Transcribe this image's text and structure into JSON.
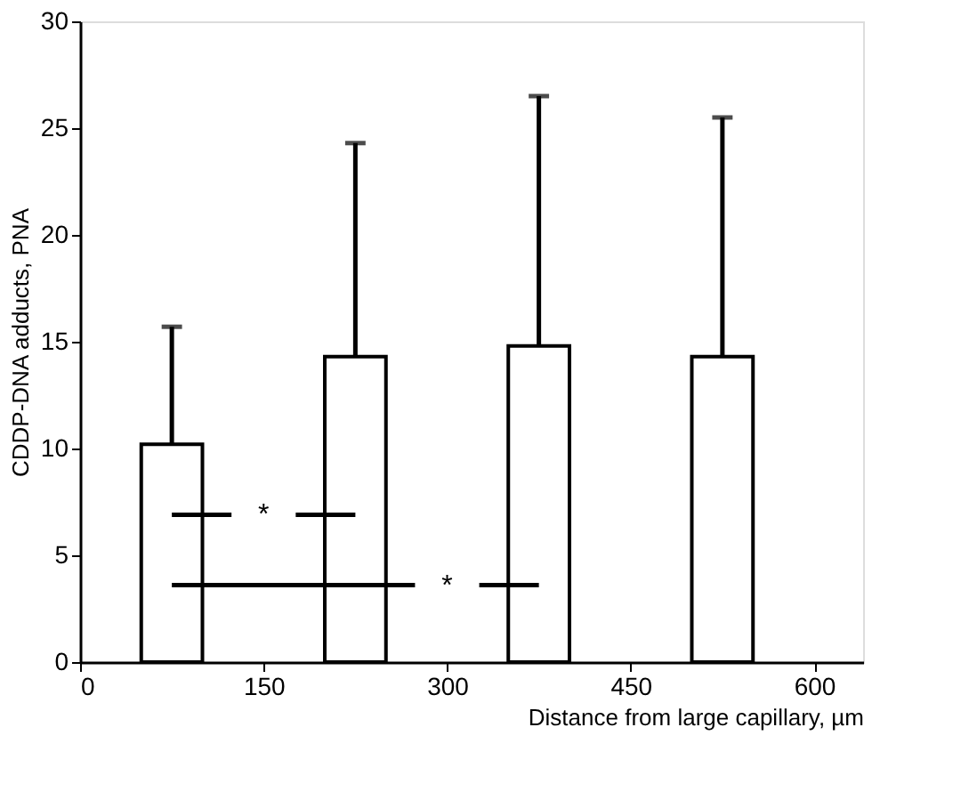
{
  "chart_data": {
    "type": "bar",
    "xlabel": "Distance from large capillary, µm",
    "ylabel": "CDDP-DNA adducts, PNA",
    "x": [
      75,
      225,
      375,
      525
    ],
    "values": [
      10.2,
      14.3,
      14.8,
      14.3
    ],
    "errors": [
      [
        10.2,
        15.7
      ],
      [
        14.3,
        24.3
      ],
      [
        14.8,
        26.5
      ],
      [
        14.3,
        25.5
      ]
    ],
    "color": "#ffffff",
    "xlim": [
      0,
      640
    ],
    "xticks": [
      0,
      150,
      300,
      450,
      600
    ],
    "ylim": [
      0,
      30
    ],
    "yticks": [
      0,
      5,
      10,
      15,
      20,
      25,
      30
    ],
    "annotations": [
      "*",
      "*"
    ],
    "grid": false
  }
}
